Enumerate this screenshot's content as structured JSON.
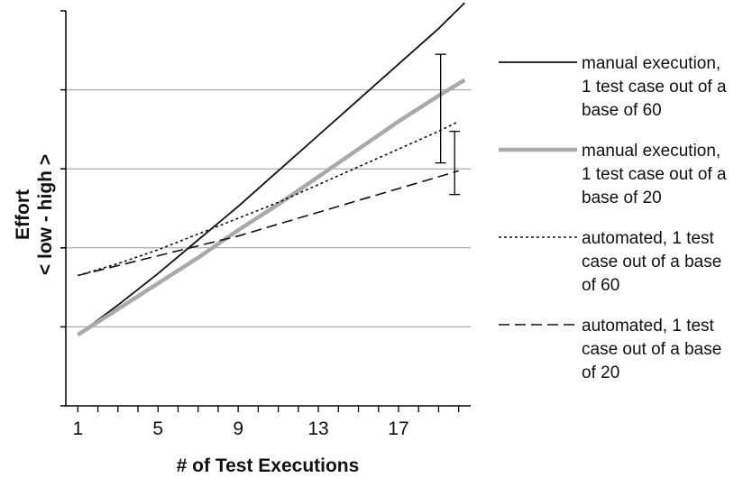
{
  "chart_data": {
    "type": "line",
    "xlabel": "# of Test Executions",
    "ylabel_line1": "Effort",
    "ylabel_line2": "< low - high >",
    "xlim": [
      0.4,
      20.6
    ],
    "ylim": [
      0,
      10
    ],
    "x_ticks": [
      1,
      5,
      9,
      13,
      17
    ],
    "y_gridlines": [
      2,
      4,
      6,
      8
    ],
    "y_ticks": [
      0,
      2,
      4,
      6,
      8,
      10
    ],
    "grid": true,
    "legend_position": "right",
    "series": [
      {
        "name": "manual execution, 1 test case out of a base of 60",
        "legend_lines": [
          "manual execution,",
          "1 test case out of a",
          "base of 60"
        ],
        "style": "solid-thin",
        "color": "#111111",
        "x": [
          1,
          3,
          5,
          7,
          9,
          11,
          13,
          15,
          17,
          19,
          20.3
        ],
        "y": [
          1.8,
          2.55,
          3.35,
          4.2,
          5.05,
          5.95,
          6.85,
          7.75,
          8.65,
          9.55,
          10.2
        ]
      },
      {
        "name": "manual execution, 1 test case out of a base of 20",
        "legend_lines": [
          "manual execution,",
          "1 test case out of a",
          "base of 20"
        ],
        "style": "solid-thick",
        "color": "#aaaaaa",
        "x": [
          1,
          3,
          5,
          7,
          9,
          11,
          13,
          15,
          17,
          19,
          20.3
        ],
        "y": [
          1.8,
          2.45,
          3.1,
          3.75,
          4.45,
          5.1,
          5.8,
          6.5,
          7.2,
          7.85,
          8.25
        ]
      },
      {
        "name": "automated, 1 test case out of a base of 60",
        "legend_lines": [
          "automated, 1 test",
          "case out of a base",
          "of 60"
        ],
        "style": "dotted",
        "color": "#111111",
        "x": [
          1,
          3,
          5,
          7,
          9,
          11,
          13,
          15,
          17,
          19,
          20.0
        ],
        "y": [
          3.3,
          3.6,
          3.95,
          4.35,
          4.75,
          5.15,
          5.6,
          6.05,
          6.5,
          6.95,
          7.2
        ]
      },
      {
        "name": "automated, 1 test case out of a base of 20",
        "legend_lines": [
          "automated, 1 test",
          "case out of a base",
          "of 20"
        ],
        "style": "dashed",
        "color": "#111111",
        "x": [
          1,
          3,
          5,
          7,
          9,
          11,
          13,
          15,
          17,
          19,
          20.0
        ],
        "y": [
          3.3,
          3.55,
          3.8,
          4.05,
          4.3,
          4.6,
          4.9,
          5.2,
          5.5,
          5.8,
          5.95
        ]
      }
    ],
    "annotations": [
      {
        "type": "difference-bar",
        "x": 19.1,
        "y_from": 6.15,
        "y_to": 8.9
      },
      {
        "type": "difference-bar",
        "x": 19.8,
        "y_from": 5.35,
        "y_to": 6.95
      }
    ]
  }
}
